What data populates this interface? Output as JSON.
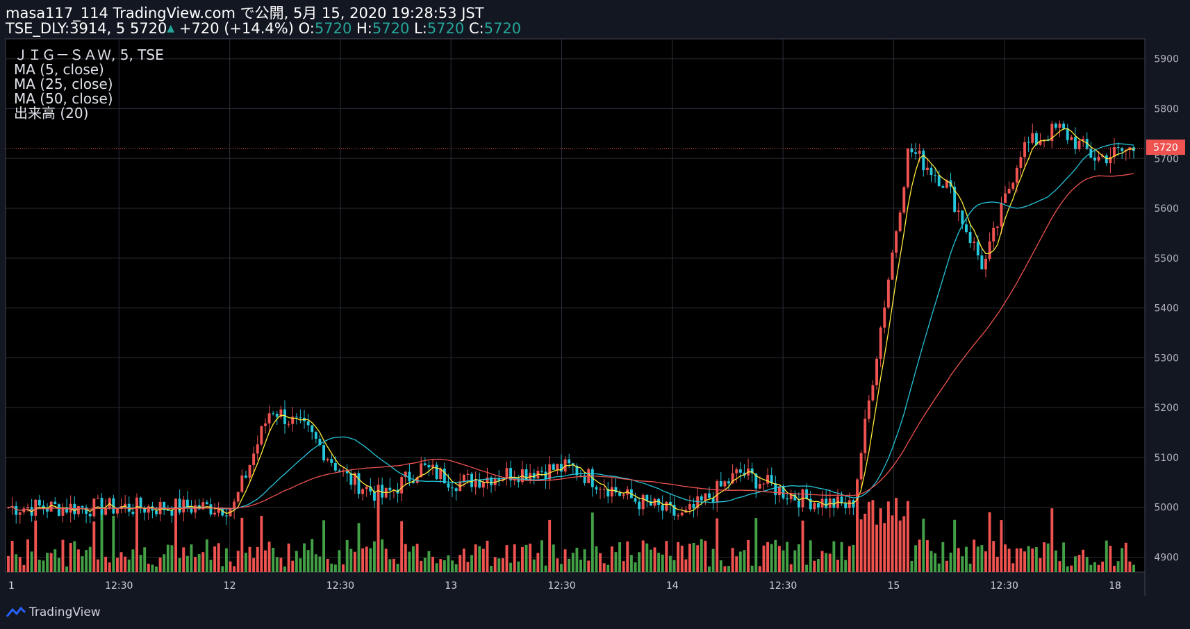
{
  "header": {
    "line1": "masa117_114 TradingView.com で公開, 5月 15, 2020 19:28:53 JST",
    "symbol": "TSE_DLY:3914, 5",
    "last": "5720",
    "change": "+720 (+14.4%)",
    "o_label": "O:",
    "o_val": "5720",
    "h_label": "H:",
    "h_val": "5720",
    "l_label": "L:",
    "l_val": "5720",
    "c_label": "C:",
    "c_val": "5720"
  },
  "legend": {
    "title": "ＪＩＧ－ＳＡＷ, 5, TSE",
    "ma5": "MA (5, close)",
    "ma25": "MA (25, close)",
    "ma50": "MA (50, close)",
    "volume": "出来高 (20)"
  },
  "price_label": "5720",
  "brand": "TradingView",
  "colors": {
    "background": "#000000",
    "up": "#ef5350",
    "down": "#26c6da",
    "vol_up": "#ef5350",
    "vol_down": "#43a047",
    "ma5": "#ffeb3b",
    "ma25": "#26c6da",
    "ma50": "#ef5350",
    "grid": "#2a2e39"
  },
  "chart_data": {
    "type": "candlestick",
    "y_ticks": [
      4900,
      5000,
      5100,
      5200,
      5300,
      5400,
      5500,
      5600,
      5700,
      5800,
      5900
    ],
    "ylim": [
      4870,
      5940
    ],
    "x_ticks": [
      "1",
      "12:30",
      "12",
      "12:30",
      "13",
      "12:30",
      "14",
      "12:30",
      "15",
      "12:30",
      "18"
    ],
    "last_price": 5720,
    "segments": [
      {
        "label": "1",
        "points": [
          [
            5100,
            5000
          ],
          [
            5060,
            5000
          ],
          [
            5000,
            5000
          ]
        ]
      },
      {
        "label": "12",
        "points": [
          [
            5000,
            5000
          ],
          [
            5100,
            5200
          ],
          [
            5200,
            5150
          ],
          [
            5080,
            5060
          ],
          [
            5140,
            5020
          ],
          [
            5060,
            5080
          ]
        ]
      },
      {
        "label": "13",
        "points": [
          [
            5080,
            5050
          ],
          [
            5050,
            5070
          ],
          [
            5070,
            5080
          ],
          [
            5060,
            5020
          ]
        ]
      },
      {
        "label": "14",
        "points": [
          [
            5000,
            4980
          ],
          [
            5060,
            5070
          ],
          [
            5030,
            5020
          ],
          [
            5000,
            5000
          ]
        ]
      },
      {
        "label": "15",
        "points": [
          [
            5000,
            5720
          ],
          [
            5720,
            5650
          ],
          [
            5600,
            5480
          ],
          [
            5550,
            5720
          ],
          [
            5720,
            5760
          ],
          [
            5720,
            5700
          ]
        ]
      }
    ],
    "ma_series": [
      {
        "name": "MA (5, close)",
        "color": "#ffeb3b"
      },
      {
        "name": "MA (25, close)",
        "color": "#26c6da"
      },
      {
        "name": "MA (50, close)",
        "color": "#ef5350"
      }
    ],
    "volume_series": {
      "name": "出来高 (20)"
    }
  }
}
